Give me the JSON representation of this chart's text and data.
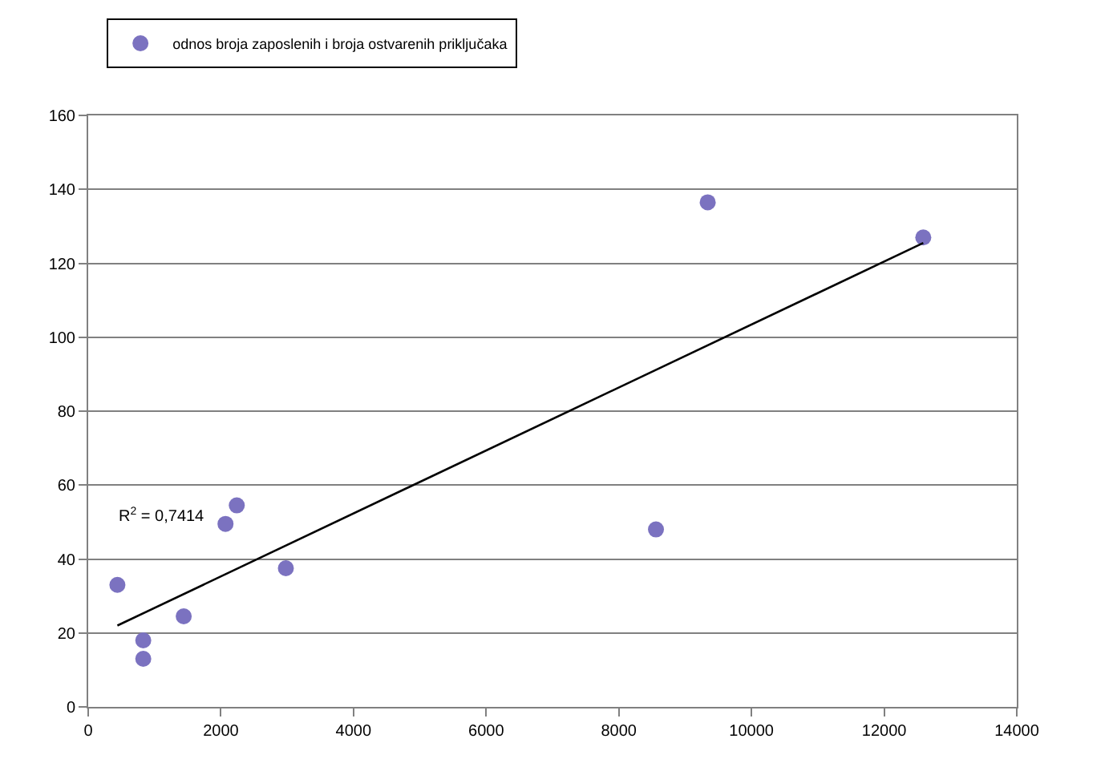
{
  "chart_data": {
    "type": "scatter",
    "series": [
      {
        "name": "odnos broja zaposlenih i broja ostvarenih priključaka",
        "color": "#7b72c0",
        "marker": "circle",
        "x": [
          440,
          830,
          830,
          1440,
          2070,
          2240,
          2980,
          8560,
          9340,
          12590
        ],
        "values": [
          33,
          18,
          13,
          24.5,
          49.5,
          54.5,
          37.5,
          48,
          136.5,
          127
        ]
      },
      {
        "type": "line",
        "color": "#000000",
        "line_style": "solid",
        "marker": "none",
        "x": [
          440,
          12590
        ],
        "values": [
          22,
          125.5
        ]
      }
    ],
    "annotations": [
      "R$^{2}$ = 0,7414"
    ],
    "xlim": [
      0,
      14000
    ],
    "xticks": [
      0,
      2000,
      4000,
      6000,
      8000,
      10000,
      12000,
      14000
    ],
    "ylim": [
      0,
      160
    ],
    "yticks": [
      0,
      20,
      40,
      60,
      80,
      100,
      120,
      140,
      160
    ],
    "grid": "y",
    "legend": "top left"
  }
}
